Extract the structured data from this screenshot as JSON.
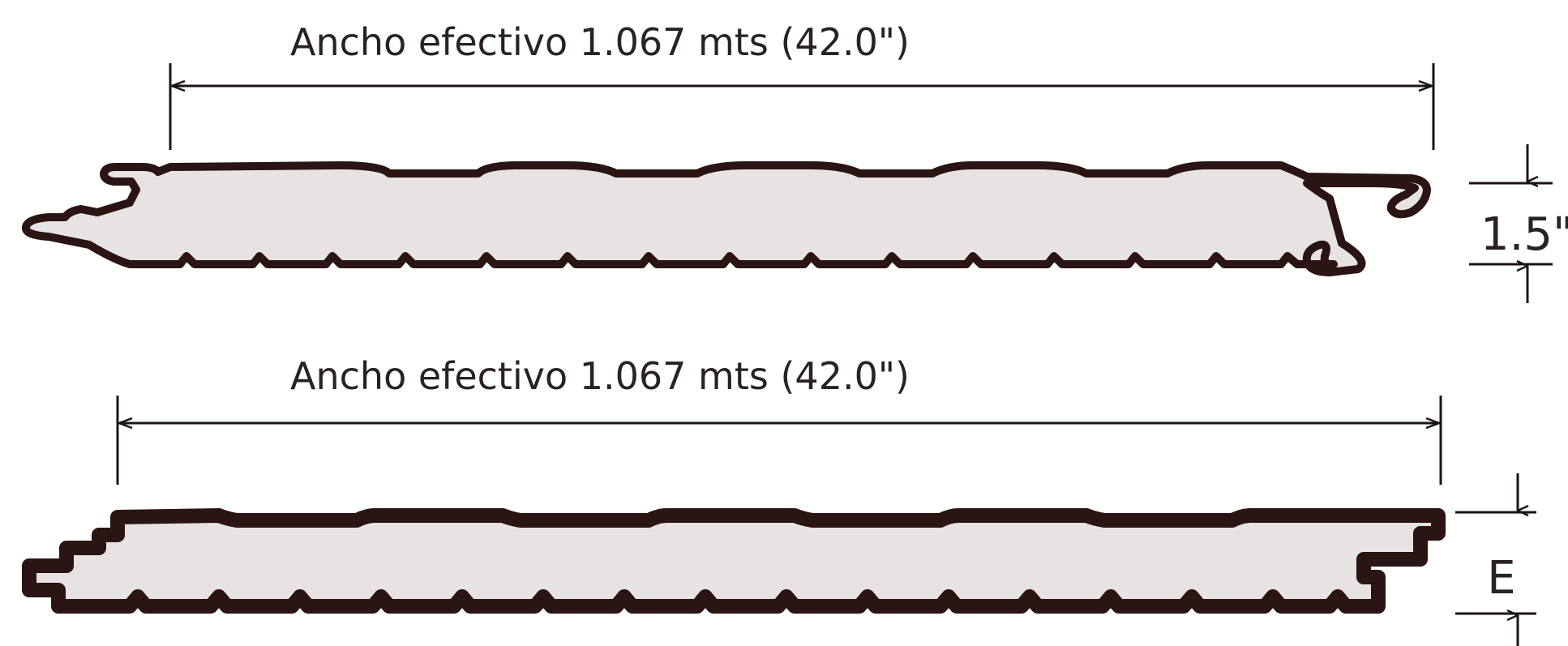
{
  "panels": [
    {
      "id": "panel-1",
      "width_label": "Ancho efectivo 1.067 mts (42.0\")",
      "thickness_label": "1.5\""
    },
    {
      "id": "panel-2",
      "width_label": "Ancho efectivo 1.067 mts (42.0\")",
      "thickness_label": "E"
    }
  ]
}
